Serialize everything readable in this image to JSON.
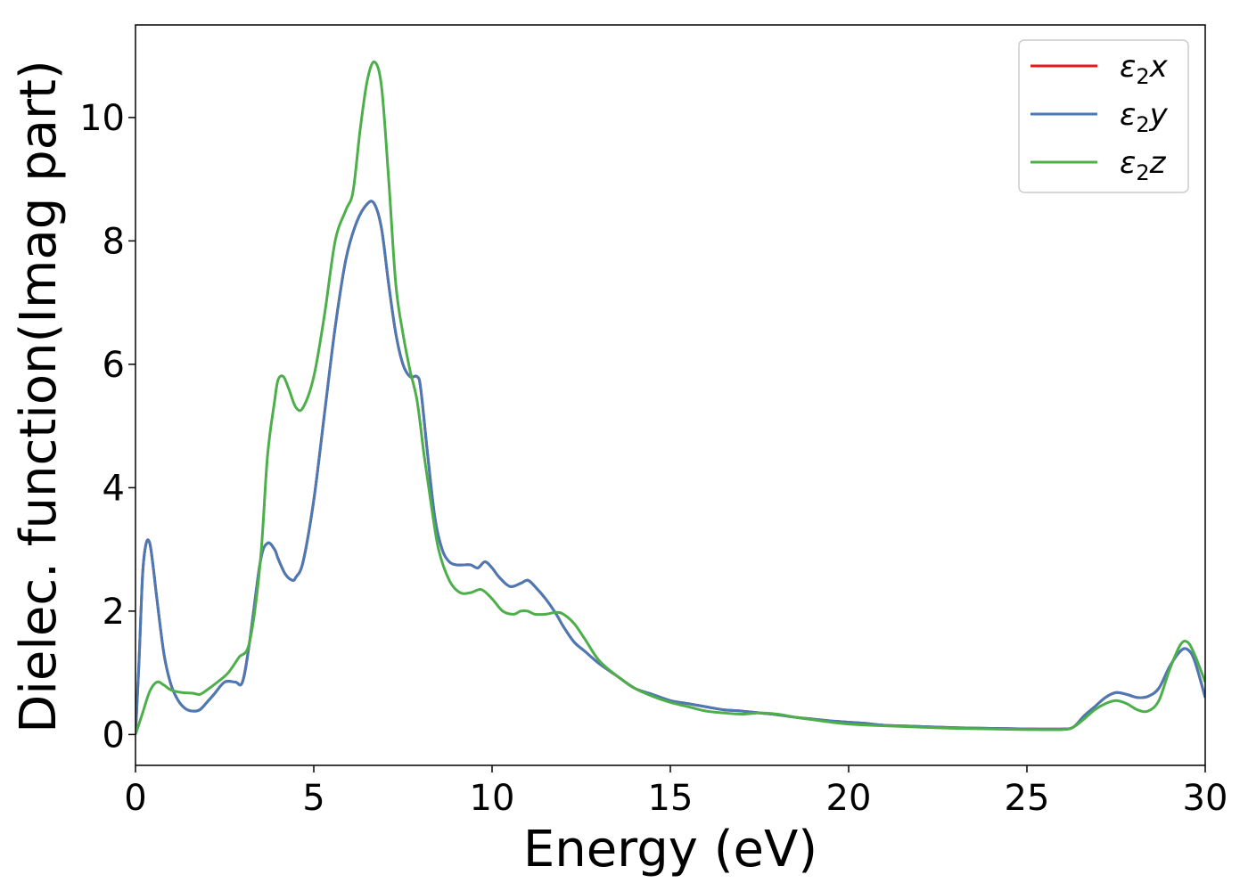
{
  "chart_data": {
    "type": "line",
    "xlabel": "Energy (eV)",
    "ylabel": "Dielec. function(Imag part)",
    "xlim": [
      0,
      30
    ],
    "ylim": [
      -0.5,
      11.5
    ],
    "xticks": [
      0,
      5,
      10,
      15,
      20,
      25,
      30
    ],
    "yticks": [
      0,
      2,
      4,
      6,
      8,
      10
    ],
    "xtick_labels": [
      "0",
      "5",
      "10",
      "15",
      "20",
      "25",
      "30"
    ],
    "ytick_labels": [
      "0",
      "2",
      "4",
      "6",
      "8",
      "10"
    ],
    "grid": false,
    "legend_placement": "top-right",
    "series": [
      {
        "name": "ε₂x",
        "legend_base": "ε",
        "legend_sub": "2",
        "legend_var": "x",
        "color": "#e41a1c",
        "x": [
          0.0,
          0.1,
          0.2,
          0.3,
          0.4,
          0.5,
          0.6,
          0.8,
          1.0,
          1.2,
          1.4,
          1.6,
          1.8,
          2.0,
          2.2,
          2.5,
          2.8,
          3.0,
          3.2,
          3.5,
          3.7,
          3.9,
          4.0,
          4.2,
          4.4,
          4.5,
          4.7,
          5.0,
          5.3,
          5.6,
          5.9,
          6.2,
          6.5,
          6.7,
          6.9,
          7.1,
          7.3,
          7.5,
          7.7,
          7.9,
          8.0,
          8.2,
          8.4,
          8.6,
          8.8,
          9.0,
          9.2,
          9.4,
          9.6,
          9.8,
          10.0,
          10.2,
          10.5,
          10.8,
          11.0,
          11.2,
          11.5,
          11.8,
          12.0,
          12.3,
          12.6,
          13.0,
          13.5,
          14.0,
          14.5,
          15.0,
          15.5,
          16.0,
          16.5,
          17.0,
          17.5,
          18.0,
          18.5,
          19.0,
          19.5,
          20.0,
          20.5,
          21.0,
          22.0,
          23.0,
          24.0,
          25.0,
          26.0,
          26.3,
          26.6,
          26.9,
          27.2,
          27.5,
          27.8,
          28.1,
          28.4,
          28.7,
          29.0,
          29.3,
          29.5,
          29.7,
          30.0
        ],
        "y": [
          0.0,
          1.2,
          2.6,
          3.1,
          3.1,
          2.7,
          2.2,
          1.3,
          0.8,
          0.55,
          0.42,
          0.38,
          0.4,
          0.52,
          0.65,
          0.85,
          0.85,
          0.85,
          1.5,
          2.8,
          3.1,
          3.0,
          2.85,
          2.6,
          2.5,
          2.55,
          2.8,
          3.8,
          5.2,
          6.6,
          7.7,
          8.3,
          8.6,
          8.6,
          8.2,
          7.3,
          6.5,
          6.0,
          5.8,
          5.8,
          5.6,
          4.5,
          3.5,
          3.0,
          2.8,
          2.75,
          2.75,
          2.75,
          2.7,
          2.8,
          2.7,
          2.55,
          2.4,
          2.45,
          2.5,
          2.4,
          2.2,
          1.95,
          1.75,
          1.5,
          1.35,
          1.15,
          0.95,
          0.75,
          0.65,
          0.55,
          0.5,
          0.45,
          0.4,
          0.38,
          0.35,
          0.32,
          0.28,
          0.25,
          0.22,
          0.2,
          0.18,
          0.15,
          0.13,
          0.11,
          0.1,
          0.09,
          0.09,
          0.12,
          0.3,
          0.45,
          0.6,
          0.68,
          0.65,
          0.6,
          0.62,
          0.75,
          1.1,
          1.35,
          1.38,
          1.2,
          0.6
        ]
      },
      {
        "name": "ε₂y",
        "legend_base": "ε",
        "legend_sub": "2",
        "legend_var": "y",
        "color": "#4a7ab5",
        "x": [
          0.0,
          0.1,
          0.2,
          0.3,
          0.4,
          0.5,
          0.6,
          0.8,
          1.0,
          1.2,
          1.4,
          1.6,
          1.8,
          2.0,
          2.2,
          2.5,
          2.8,
          3.0,
          3.2,
          3.5,
          3.7,
          3.9,
          4.0,
          4.2,
          4.4,
          4.5,
          4.7,
          5.0,
          5.3,
          5.6,
          5.9,
          6.2,
          6.5,
          6.7,
          6.9,
          7.1,
          7.3,
          7.5,
          7.7,
          7.9,
          8.0,
          8.2,
          8.4,
          8.6,
          8.8,
          9.0,
          9.2,
          9.4,
          9.6,
          9.8,
          10.0,
          10.2,
          10.5,
          10.8,
          11.0,
          11.2,
          11.5,
          11.8,
          12.0,
          12.3,
          12.6,
          13.0,
          13.5,
          14.0,
          14.5,
          15.0,
          15.5,
          16.0,
          16.5,
          17.0,
          17.5,
          18.0,
          18.5,
          19.0,
          19.5,
          20.0,
          20.5,
          21.0,
          22.0,
          23.0,
          24.0,
          25.0,
          26.0,
          26.3,
          26.6,
          26.9,
          27.2,
          27.5,
          27.8,
          28.1,
          28.4,
          28.7,
          29.0,
          29.3,
          29.5,
          29.7,
          30.0
        ],
        "y": [
          0.0,
          1.2,
          2.6,
          3.1,
          3.1,
          2.7,
          2.2,
          1.3,
          0.8,
          0.55,
          0.42,
          0.38,
          0.4,
          0.52,
          0.65,
          0.85,
          0.85,
          0.85,
          1.5,
          2.8,
          3.1,
          3.0,
          2.85,
          2.6,
          2.5,
          2.55,
          2.8,
          3.8,
          5.2,
          6.6,
          7.7,
          8.3,
          8.6,
          8.6,
          8.2,
          7.3,
          6.5,
          6.0,
          5.8,
          5.8,
          5.6,
          4.5,
          3.5,
          3.0,
          2.8,
          2.75,
          2.75,
          2.75,
          2.7,
          2.8,
          2.7,
          2.55,
          2.4,
          2.45,
          2.5,
          2.4,
          2.2,
          1.95,
          1.75,
          1.5,
          1.35,
          1.15,
          0.95,
          0.75,
          0.65,
          0.55,
          0.5,
          0.45,
          0.4,
          0.38,
          0.35,
          0.32,
          0.28,
          0.25,
          0.22,
          0.2,
          0.18,
          0.15,
          0.13,
          0.11,
          0.1,
          0.09,
          0.09,
          0.12,
          0.3,
          0.45,
          0.6,
          0.68,
          0.65,
          0.6,
          0.62,
          0.75,
          1.1,
          1.35,
          1.38,
          1.2,
          0.6
        ]
      },
      {
        "name": "ε₂z",
        "legend_base": "ε",
        "legend_sub": "2",
        "legend_var": "z",
        "color": "#4daf4a",
        "x": [
          0.0,
          0.2,
          0.4,
          0.6,
          0.8,
          1.0,
          1.3,
          1.6,
          1.8,
          2.0,
          2.3,
          2.6,
          2.9,
          3.2,
          3.5,
          3.7,
          3.9,
          4.0,
          4.15,
          4.3,
          4.5,
          4.7,
          5.0,
          5.3,
          5.6,
          5.9,
          6.1,
          6.3,
          6.5,
          6.7,
          6.9,
          7.1,
          7.3,
          7.5,
          7.7,
          7.9,
          8.1,
          8.3,
          8.5,
          8.8,
          9.1,
          9.4,
          9.7,
          10.0,
          10.3,
          10.6,
          10.8,
          11.0,
          11.2,
          11.5,
          11.8,
          12.0,
          12.3,
          12.6,
          13.0,
          13.5,
          14.0,
          14.5,
          15.0,
          15.5,
          16.0,
          16.5,
          17.0,
          17.5,
          18.0,
          18.5,
          19.0,
          19.5,
          20.0,
          21.0,
          22.0,
          23.0,
          24.0,
          25.0,
          26.0,
          26.3,
          26.6,
          26.9,
          27.2,
          27.5,
          27.8,
          28.1,
          28.4,
          28.7,
          29.0,
          29.3,
          29.5,
          29.7,
          30.0
        ],
        "y": [
          0.0,
          0.35,
          0.7,
          0.85,
          0.8,
          0.72,
          0.68,
          0.67,
          0.65,
          0.72,
          0.85,
          1.0,
          1.25,
          1.5,
          2.8,
          4.5,
          5.4,
          5.75,
          5.8,
          5.6,
          5.3,
          5.3,
          5.8,
          6.8,
          8.0,
          8.5,
          8.8,
          9.8,
          10.6,
          10.9,
          10.5,
          9.0,
          7.3,
          6.5,
          5.9,
          5.4,
          4.5,
          3.7,
          3.0,
          2.5,
          2.3,
          2.3,
          2.35,
          2.2,
          2.0,
          1.95,
          2.0,
          2.0,
          1.95,
          1.95,
          1.98,
          1.95,
          1.8,
          1.55,
          1.2,
          0.95,
          0.75,
          0.62,
          0.52,
          0.45,
          0.38,
          0.35,
          0.33,
          0.35,
          0.33,
          0.28,
          0.24,
          0.2,
          0.17,
          0.14,
          0.12,
          0.1,
          0.09,
          0.08,
          0.08,
          0.12,
          0.25,
          0.4,
          0.5,
          0.55,
          0.5,
          0.4,
          0.38,
          0.55,
          1.05,
          1.45,
          1.5,
          1.3,
          0.85
        ]
      }
    ]
  }
}
